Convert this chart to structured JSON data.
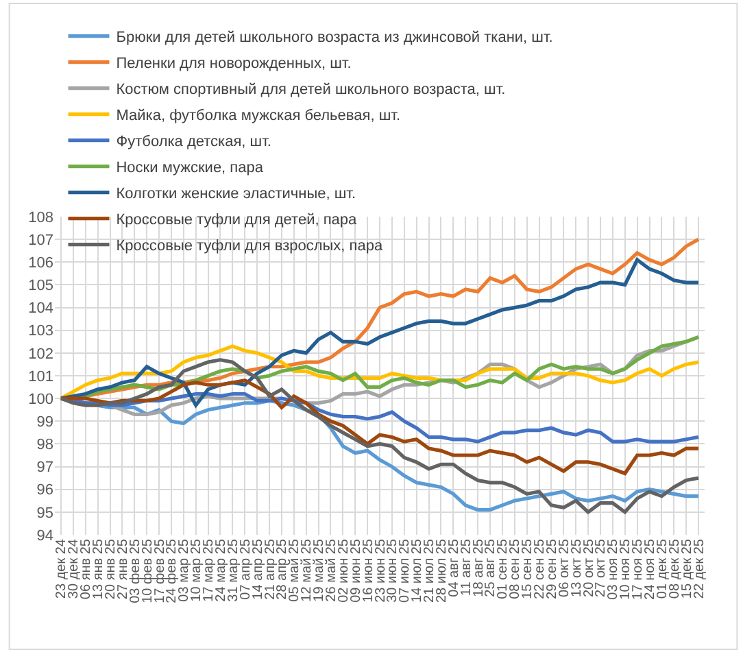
{
  "chart_data": {
    "type": "line",
    "categories": [
      "23 дек 24",
      "30 дек 24",
      "06 янв 25",
      "13 янв 25",
      "20 янв 25",
      "27 янв 25",
      "03 фев 25",
      "10 фев 25",
      "17 фев 25",
      "24 фев 25",
      "03 мар 25",
      "10 мар 25",
      "17 мар 25",
      "24 мар 25",
      "31 мар 25",
      "07 апр 25",
      "14 апр 25",
      "21 апр 25",
      "28 апр 25",
      "05 май 25",
      "12 май 25",
      "19 май 25",
      "26 май 25",
      "02 июн 25",
      "09 июн 25",
      "16 июн 25",
      "23 июн 25",
      "30 июн 25",
      "07 июл 25",
      "14 июл 25",
      "21 июл 25",
      "28 июл 25",
      "04 авг 25",
      "11 авг 25",
      "18 авг 25",
      "25 авг 25",
      "01 сен 25",
      "08 сен 25",
      "15 сен 25",
      "22 сен 25",
      "29 сен 25",
      "06 окт 25",
      "13 окт 25",
      "20 окт 25",
      "27 окт 25",
      "03 ноя 25",
      "10 ноя 25",
      "17 ноя 25",
      "24 ноя 25",
      "01 дек 25",
      "08 дек 25",
      "15 дек 25",
      "22 дек 25"
    ],
    "series": [
      {
        "name": "Брюки для детей школьного возраста из джинсовой ткани, шт.",
        "color": "#5b9bd5",
        "values": [
          100,
          99.9,
          99.8,
          99.7,
          99.6,
          99.6,
          99.6,
          99.3,
          99.5,
          99.0,
          98.9,
          99.3,
          99.5,
          99.6,
          99.7,
          99.8,
          99.8,
          99.9,
          99.8,
          99.7,
          99.5,
          99.3,
          98.7,
          97.9,
          97.6,
          97.7,
          97.3,
          97.0,
          96.6,
          96.3,
          96.2,
          96.1,
          95.8,
          95.3,
          95.1,
          95.1,
          95.3,
          95.5,
          95.6,
          95.7,
          95.8,
          95.9,
          95.6,
          95.5,
          95.6,
          95.7,
          95.5,
          95.9,
          96.0,
          95.9,
          95.8,
          95.7,
          95.7
        ]
      },
      {
        "name": "Пеленки для новорожденных, шт.",
        "color": "#ed7d31",
        "values": [
          100,
          100.0,
          100.1,
          100.2,
          100.3,
          100.4,
          100.5,
          100.6,
          100.6,
          100.7,
          100.7,
          100.8,
          100.8,
          100.9,
          101.1,
          101.2,
          101.3,
          101.4,
          101.4,
          101.5,
          101.6,
          101.6,
          101.8,
          102.2,
          102.5,
          103.1,
          104.0,
          104.2,
          104.6,
          104.7,
          104.5,
          104.6,
          104.5,
          104.8,
          104.7,
          105.3,
          105.1,
          105.4,
          104.8,
          104.7,
          104.9,
          105.3,
          105.7,
          105.9,
          105.7,
          105.5,
          105.9,
          106.4,
          106.1,
          105.9,
          106.2,
          106.7,
          107.0
        ]
      },
      {
        "name": "Костюм спортивный для детей школьного возраста, шт.",
        "color": "#a5a5a5",
        "values": [
          100,
          99.9,
          99.8,
          99.8,
          99.7,
          99.5,
          99.3,
          99.3,
          99.4,
          99.7,
          99.8,
          100.0,
          100.1,
          100.0,
          100.0,
          100.0,
          100.0,
          100.0,
          100.0,
          99.9,
          99.8,
          99.8,
          99.9,
          100.2,
          100.2,
          100.3,
          100.1,
          100.4,
          100.6,
          100.6,
          100.7,
          100.8,
          100.7,
          100.9,
          101.1,
          101.5,
          101.5,
          101.3,
          100.8,
          100.5,
          100.7,
          101.0,
          101.3,
          101.4,
          101.5,
          101.1,
          101.3,
          101.9,
          102.1,
          102.1,
          102.3,
          102.5,
          102.7
        ]
      },
      {
        "name": "Майка, футболка мужская бельевая, шт.",
        "color": "#ffc000",
        "values": [
          100,
          100.3,
          100.6,
          100.8,
          100.9,
          101.1,
          101.1,
          101.1,
          101.1,
          101.2,
          101.6,
          101.8,
          101.9,
          102.1,
          102.3,
          102.1,
          102.0,
          101.8,
          101.6,
          101.2,
          101.2,
          101.0,
          100.9,
          100.9,
          100.9,
          100.9,
          100.9,
          101.1,
          101.0,
          100.9,
          100.9,
          100.8,
          100.8,
          100.8,
          101.1,
          101.3,
          101.3,
          101.3,
          100.9,
          100.9,
          101.1,
          101.1,
          101.1,
          101.0,
          100.8,
          100.7,
          100.8,
          101.1,
          101.3,
          101.0,
          101.3,
          101.5,
          101.6
        ]
      },
      {
        "name": "Футболка детская, шт.",
        "color": "#4472c4",
        "values": [
          100,
          99.9,
          99.8,
          99.8,
          99.7,
          99.7,
          99.8,
          99.9,
          99.9,
          100.0,
          100.1,
          100.2,
          100.2,
          100.1,
          100.2,
          100.2,
          99.9,
          99.9,
          100.0,
          99.9,
          99.8,
          99.5,
          99.3,
          99.2,
          99.2,
          99.1,
          99.2,
          99.4,
          99.0,
          98.7,
          98.3,
          98.3,
          98.2,
          98.2,
          98.1,
          98.3,
          98.5,
          98.5,
          98.6,
          98.6,
          98.7,
          98.5,
          98.4,
          98.6,
          98.5,
          98.1,
          98.1,
          98.2,
          98.1,
          98.1,
          98.1,
          98.2,
          98.3
        ]
      },
      {
        "name": "Носки мужские, пара",
        "color": "#70ad47",
        "values": [
          100,
          100.0,
          100.1,
          100.3,
          100.4,
          100.5,
          100.6,
          100.5,
          100.4,
          100.6,
          100.6,
          100.8,
          101.0,
          101.2,
          101.3,
          101.2,
          100.9,
          101.0,
          101.2,
          101.3,
          101.4,
          101.2,
          101.1,
          100.8,
          101.1,
          100.5,
          100.5,
          100.8,
          100.9,
          100.7,
          100.6,
          100.8,
          100.8,
          100.5,
          100.6,
          100.8,
          100.7,
          101.1,
          100.8,
          101.3,
          101.5,
          101.3,
          101.4,
          101.3,
          101.3,
          101.1,
          101.3,
          101.7,
          102.0,
          102.3,
          102.4,
          102.5,
          102.7
        ]
      },
      {
        "name": "Колготки женские эластичные, шт.",
        "color": "#255e91",
        "values": [
          100,
          100.1,
          100.2,
          100.4,
          100.5,
          100.7,
          100.8,
          101.4,
          101.1,
          100.9,
          100.7,
          99.7,
          100.4,
          100.6,
          100.7,
          100.6,
          101.1,
          101.4,
          101.9,
          102.1,
          102.0,
          102.6,
          102.9,
          102.5,
          102.5,
          102.4,
          102.7,
          102.9,
          103.1,
          103.3,
          103.4,
          103.4,
          103.3,
          103.3,
          103.5,
          103.7,
          103.9,
          104.0,
          104.1,
          104.3,
          104.3,
          104.5,
          104.8,
          104.9,
          105.1,
          105.1,
          105.0,
          106.1,
          105.7,
          105.5,
          105.2,
          105.1,
          105.1
        ]
      },
      {
        "name": "Кроссовые туфли для детей, пара",
        "color": "#9e480e",
        "values": [
          100,
          100.0,
          100.0,
          99.9,
          99.8,
          99.9,
          99.9,
          99.9,
          100.0,
          100.3,
          100.6,
          100.7,
          100.6,
          100.6,
          100.7,
          100.8,
          100.5,
          100.2,
          99.6,
          100.1,
          99.8,
          99.3,
          99.0,
          98.8,
          98.4,
          98.0,
          98.4,
          98.3,
          98.1,
          98.2,
          97.8,
          97.7,
          97.5,
          97.5,
          97.5,
          97.7,
          97.6,
          97.5,
          97.2,
          97.4,
          97.1,
          96.8,
          97.2,
          97.2,
          97.1,
          96.9,
          96.7,
          97.5,
          97.5,
          97.6,
          97.5,
          97.8,
          97.8
        ]
      },
      {
        "name": "Кроссовые туфли для взрослых, пара",
        "color": "#636363",
        "values": [
          100,
          99.8,
          99.7,
          99.7,
          99.8,
          99.8,
          100.0,
          100.2,
          100.5,
          100.6,
          101.2,
          101.4,
          101.6,
          101.7,
          101.6,
          101.2,
          100.9,
          100.1,
          100.4,
          99.9,
          99.5,
          99.2,
          98.8,
          98.5,
          98.2,
          97.9,
          98.0,
          97.9,
          97.4,
          97.2,
          96.9,
          97.1,
          97.1,
          96.7,
          96.4,
          96.3,
          96.3,
          96.1,
          95.8,
          95.9,
          95.3,
          95.2,
          95.5,
          95.0,
          95.4,
          95.4,
          95.0,
          95.6,
          95.9,
          95.7,
          96.1,
          96.4,
          96.5
        ]
      }
    ],
    "ylim": [
      94,
      108
    ],
    "yticks": [
      94,
      95,
      96,
      97,
      98,
      99,
      100,
      101,
      102,
      103,
      104,
      105,
      106,
      107,
      108
    ],
    "grid": true,
    "legend": "top left",
    "marker": "none",
    "line_style": "solid"
  }
}
